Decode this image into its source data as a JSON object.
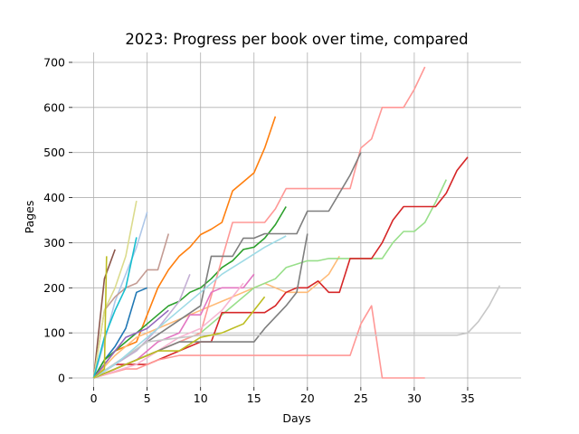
{
  "chart_data": {
    "type": "line",
    "title": "2023: Progress per book over time, compared",
    "xlabel": "Days",
    "ylabel": "Pages",
    "xlim": [
      -2,
      40
    ],
    "ylim": [
      -20,
      722
    ],
    "xticks": [
      0,
      5,
      10,
      15,
      20,
      25,
      30,
      35
    ],
    "yticks": [
      0,
      100,
      200,
      300,
      400,
      500,
      600,
      700
    ],
    "grid": true,
    "series": [
      {
        "color": "#1f77b4",
        "x": [
          0,
          1,
          2,
          3,
          4,
          5
        ],
        "y": [
          0,
          40,
          70,
          110,
          190,
          200
        ]
      },
      {
        "color": "#aec7e8",
        "x": [
          0,
          1,
          2,
          3,
          4,
          5
        ],
        "y": [
          0,
          80,
          170,
          230,
          290,
          368
        ]
      },
      {
        "color": "#ff7f0e",
        "x": [
          0,
          1,
          2,
          3,
          4,
          5,
          6,
          7,
          8,
          9,
          10,
          11,
          12,
          13,
          14,
          15,
          16,
          17
        ],
        "y": [
          0,
          30,
          60,
          70,
          80,
          140,
          200,
          240,
          270,
          290,
          318,
          330,
          345,
          415,
          435,
          455,
          510,
          580
        ]
      },
      {
        "color": "#ffbb78",
        "x": [
          0,
          2,
          4,
          6,
          8,
          10,
          12,
          14,
          16,
          18,
          20,
          22,
          23
        ],
        "y": [
          0,
          50,
          90,
          110,
          130,
          150,
          170,
          190,
          210,
          190,
          190,
          230,
          270
        ]
      },
      {
        "color": "#2ca02c",
        "x": [
          0,
          1,
          2,
          3,
          4,
          5,
          6,
          7,
          8,
          9,
          10,
          11,
          12,
          13,
          14,
          15,
          16,
          17,
          18
        ],
        "y": [
          0,
          40,
          60,
          80,
          100,
          120,
          140,
          160,
          170,
          190,
          200,
          220,
          245,
          260,
          285,
          290,
          310,
          340,
          380
        ]
      },
      {
        "color": "#98df8a",
        "x": [
          0,
          5,
          10,
          15,
          17,
          18,
          20,
          21,
          22,
          25,
          27,
          28,
          29,
          30,
          31,
          32,
          33
        ],
        "y": [
          0,
          50,
          100,
          200,
          220,
          245,
          260,
          260,
          265,
          265,
          265,
          300,
          325,
          325,
          345,
          390,
          440
        ]
      },
      {
        "color": "#d62728",
        "x": [
          0,
          2,
          5,
          10,
          11,
          12,
          16,
          17,
          18,
          19,
          20,
          21,
          22,
          23,
          24,
          25,
          26,
          27,
          28,
          29,
          30,
          31,
          32,
          33,
          34,
          35
        ],
        "y": [
          0,
          30,
          30,
          80,
          80,
          145,
          145,
          160,
          190,
          200,
          200,
          215,
          190,
          190,
          265,
          265,
          265,
          300,
          350,
          380,
          380,
          380,
          380,
          410,
          460,
          490
        ]
      },
      {
        "color": "#ff9896",
        "x": [
          0,
          3,
          4,
          5,
          6,
          8,
          10,
          15,
          20,
          24,
          25,
          26,
          27,
          28,
          29,
          30,
          31
        ],
        "y": [
          0,
          20,
          20,
          30,
          40,
          50,
          50,
          50,
          50,
          50,
          120,
          160,
          0,
          0,
          0,
          0,
          0
        ]
      },
      {
        "color": "#ff9896",
        "x": [
          0,
          5,
          10,
          13,
          16,
          17,
          18,
          20,
          22,
          23,
          24,
          25,
          26,
          27,
          28,
          29,
          30,
          31
        ],
        "y": [
          0,
          50,
          100,
          345,
          345,
          375,
          420,
          420,
          420,
          420,
          420,
          510,
          530,
          600,
          600,
          600,
          640,
          690
        ]
      },
      {
        "color": "#9467bd",
        "x": [
          0,
          1,
          2,
          3,
          5,
          7
        ],
        "y": [
          0,
          30,
          60,
          90,
          110,
          150
        ]
      },
      {
        "color": "#c5b0d5",
        "x": [
          0,
          2,
          4,
          6,
          8,
          9
        ],
        "y": [
          0,
          30,
          60,
          110,
          170,
          230
        ]
      },
      {
        "color": "#8c564b",
        "x": [
          0,
          1,
          2
        ],
        "y": [
          0,
          220,
          285
        ]
      },
      {
        "color": "#c49c94",
        "x": [
          0,
          1,
          2,
          3,
          4,
          5,
          6,
          7
        ],
        "y": [
          0,
          150,
          180,
          200,
          210,
          240,
          240,
          320
        ]
      },
      {
        "color": "#e377c2",
        "x": [
          0,
          2,
          4,
          6,
          8,
          9,
          10,
          11,
          12,
          13,
          14,
          15
        ],
        "y": [
          0,
          20,
          40,
          80,
          100,
          140,
          140,
          190,
          200,
          200,
          200,
          230
        ]
      },
      {
        "color": "#f7b6d2",
        "x": [
          0,
          2,
          4,
          6,
          8,
          10,
          12,
          14
        ],
        "y": [
          0,
          15,
          30,
          60,
          90,
          110,
          150,
          210
        ]
      },
      {
        "color": "#7f7f7f",
        "x": [
          0,
          5,
          10,
          11,
          12,
          13,
          14,
          15,
          16,
          17,
          18,
          19,
          20,
          22,
          24,
          25
        ],
        "y": [
          0,
          80,
          160,
          270,
          270,
          270,
          310,
          310,
          320,
          320,
          320,
          320,
          370,
          370,
          450,
          500
        ]
      },
      {
        "color": "#7f7f7f",
        "x": [
          0,
          8,
          10,
          15,
          16,
          17,
          18,
          19,
          20
        ],
        "y": [
          0,
          80,
          80,
          80,
          110,
          135,
          160,
          190,
          320
        ]
      },
      {
        "color": "#c7c7c7",
        "x": [
          0,
          5,
          10,
          15,
          20,
          25,
          30,
          34,
          35,
          36,
          37,
          38
        ],
        "y": [
          0,
          80,
          95,
          95,
          95,
          95,
          95,
          95,
          100,
          125,
          160,
          205
        ]
      },
      {
        "color": "#bcbd22",
        "x": [
          0,
          2,
          4,
          6,
          8,
          10,
          12,
          14,
          16
        ],
        "y": [
          0,
          20,
          40,
          60,
          60,
          90,
          100,
          120,
          180
        ]
      },
      {
        "color": "#dbdb8d",
        "x": [
          0,
          1,
          2,
          3,
          4
        ],
        "y": [
          0,
          150,
          200,
          270,
          393
        ]
      },
      {
        "color": "#17becf",
        "x": [
          0,
          1,
          2,
          3,
          4
        ],
        "y": [
          0,
          90,
          150,
          200,
          312
        ]
      },
      {
        "color": "#9edae5",
        "x": [
          0,
          2,
          4,
          6,
          8,
          10,
          12,
          14,
          16,
          18
        ],
        "y": [
          0,
          30,
          70,
          110,
          150,
          190,
          230,
          260,
          290,
          315
        ]
      },
      {
        "color": "#bcbd22",
        "x": [
          0,
          1,
          1.2
        ],
        "y": [
          0,
          20,
          270
        ]
      }
    ]
  }
}
